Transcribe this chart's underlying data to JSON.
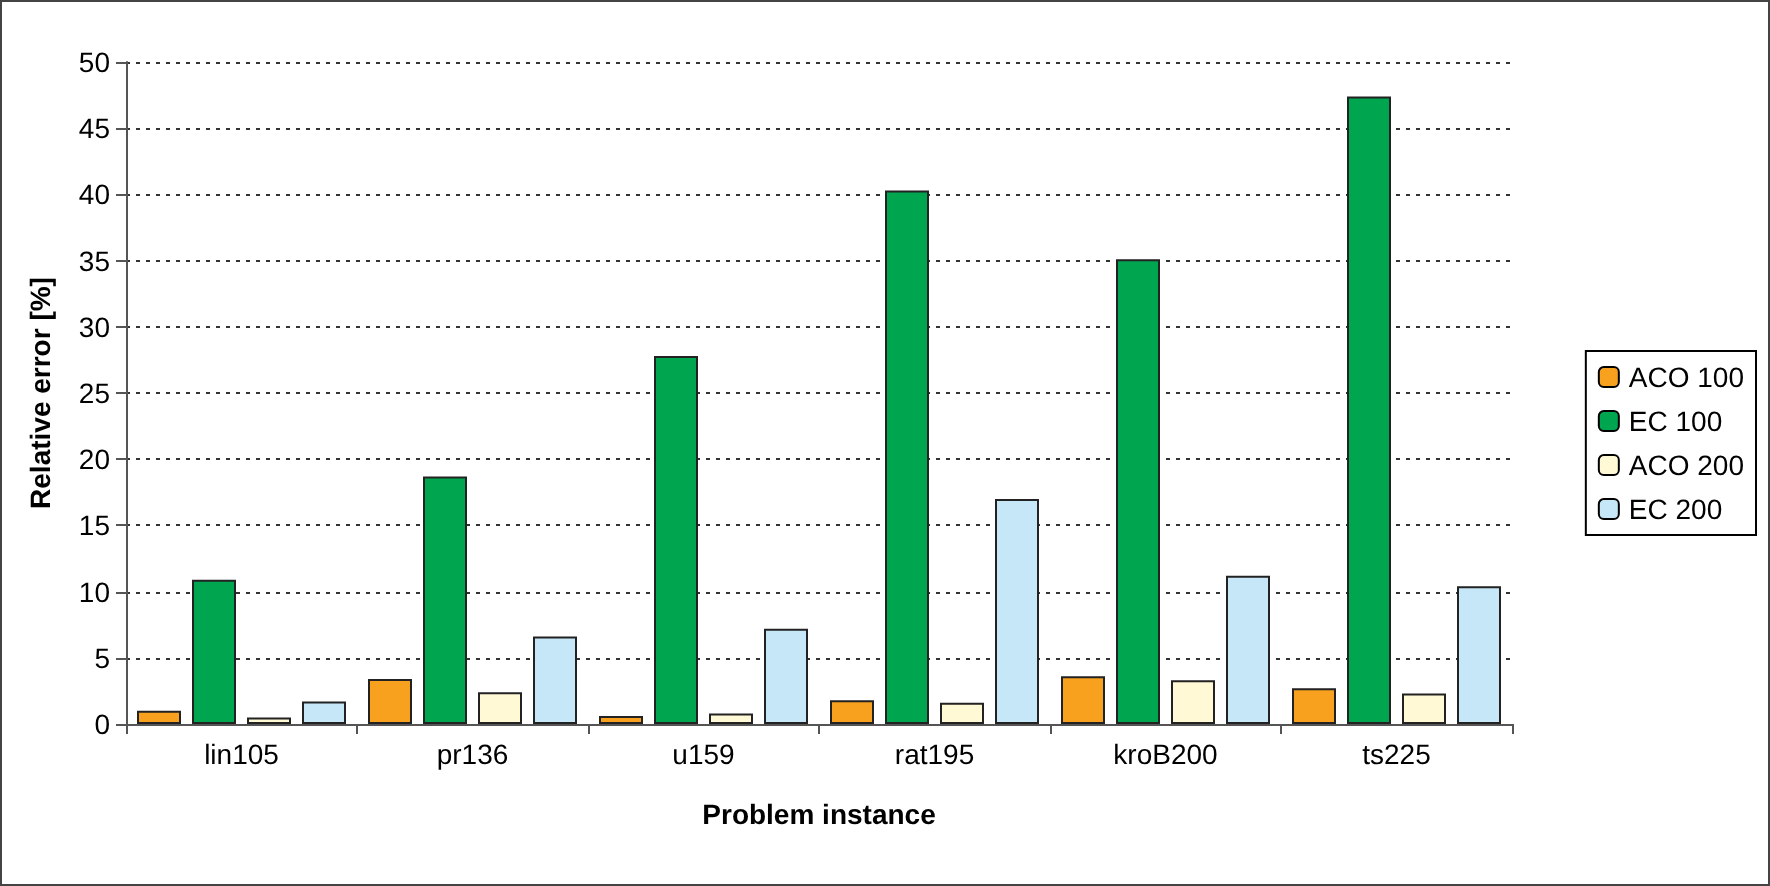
{
  "chart_data": {
    "type": "bar",
    "xlabel": "Problem instance",
    "ylabel": "Relative error [%]",
    "categories": [
      "lin105",
      "pr136",
      "u159",
      "rat195",
      "kroB200",
      "ts225"
    ],
    "series": [
      {
        "name": "ACO 100",
        "color": "#f7a11f",
        "values": [
          1.0,
          3.4,
          0.6,
          1.8,
          3.6,
          2.7
        ]
      },
      {
        "name": "EC 100",
        "color": "#00a550",
        "values": [
          10.9,
          18.7,
          27.8,
          40.3,
          35.1,
          47.4
        ]
      },
      {
        "name": "ACO 200",
        "color": "#fff9d6",
        "values": [
          0.5,
          2.4,
          0.8,
          1.6,
          3.3,
          2.3
        ]
      },
      {
        "name": "EC 200",
        "color": "#c6e7f7",
        "values": [
          1.7,
          6.6,
          7.2,
          17.0,
          11.2,
          10.4
        ]
      }
    ],
    "ylim": [
      0,
      50
    ],
    "yticks": [
      0,
      5,
      10,
      15,
      20,
      25,
      30,
      35,
      40,
      45,
      50
    ],
    "grid": "y",
    "legend": "right"
  }
}
